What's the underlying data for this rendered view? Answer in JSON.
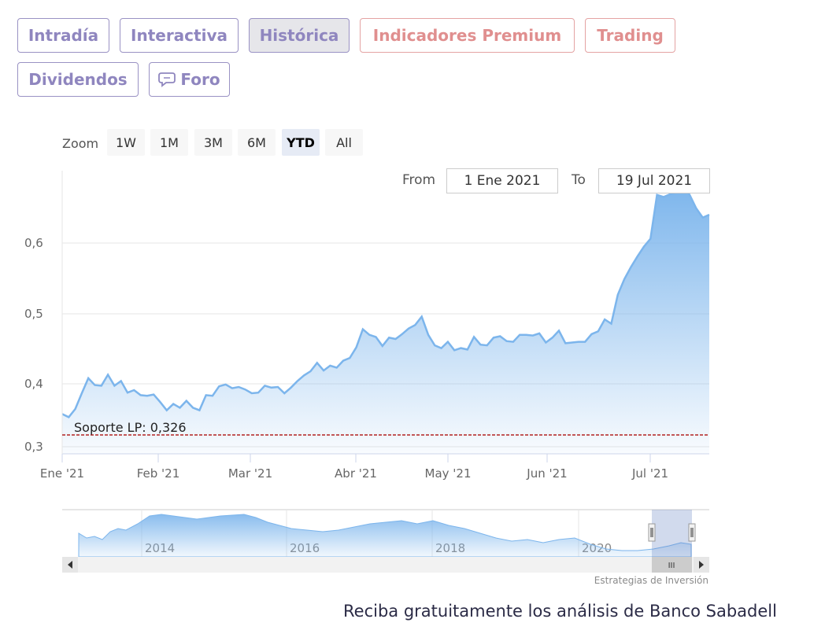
{
  "tabs": [
    {
      "label": "Intradía",
      "active": false,
      "premium": false
    },
    {
      "label": "Interactiva",
      "active": false,
      "premium": false
    },
    {
      "label": "Histórica",
      "active": true,
      "premium": false
    },
    {
      "label": "Indicadores Premium",
      "active": false,
      "premium": true
    },
    {
      "label": "Trading",
      "active": false,
      "premium": true
    },
    {
      "label": "Dividendos",
      "active": false,
      "premium": false
    },
    {
      "label": "Foro",
      "active": false,
      "premium": false,
      "icon": "chat-bubble-icon"
    }
  ],
  "zoom": {
    "label": "Zoom",
    "buttons": [
      "1W",
      "1M",
      "3M",
      "6M",
      "YTD",
      "All"
    ],
    "selected": "YTD"
  },
  "range": {
    "from_label": "From",
    "from_value": "1 Ene 2021",
    "to_label": "To",
    "to_value": "19 Jul 2021"
  },
  "chart_data": {
    "type": "area",
    "title": "",
    "xlabel": "",
    "ylabel": "",
    "y_ticks": [
      "0,3",
      "0,4",
      "0,5",
      "0,6"
    ],
    "ylim": [
      0.3,
      0.7
    ],
    "x_ticks": [
      {
        "label": "Ene '21",
        "date": "2021-01-01"
      },
      {
        "label": "Feb '21",
        "date": "2021-02-01"
      },
      {
        "label": "Mar '21",
        "date": "2021-03-01"
      },
      {
        "label": "Abr '21",
        "date": "2021-04-01"
      },
      {
        "label": "May '21",
        "date": "2021-05-01"
      },
      {
        "label": "Jun '21",
        "date": "2021-06-01"
      },
      {
        "label": "Jul '21",
        "date": "2021-07-01"
      }
    ],
    "x_range": [
      "2021-01-01",
      "2021-07-19"
    ],
    "series": [
      {
        "color": "#7cb5ec",
        "points": [
          [
            "2021-01-01",
            0.352
          ],
          [
            "2021-01-03",
            0.347
          ],
          [
            "2021-01-05",
            0.36
          ],
          [
            "2021-01-07",
            0.385
          ],
          [
            "2021-01-09",
            0.408
          ],
          [
            "2021-01-11",
            0.398
          ],
          [
            "2021-01-13",
            0.397
          ],
          [
            "2021-01-15",
            0.413
          ],
          [
            "2021-01-17",
            0.397
          ],
          [
            "2021-01-19",
            0.404
          ],
          [
            "2021-01-21",
            0.386
          ],
          [
            "2021-01-23",
            0.39
          ],
          [
            "2021-01-25",
            0.382
          ],
          [
            "2021-01-27",
            0.381
          ],
          [
            "2021-01-29",
            0.383
          ],
          [
            "2021-01-31",
            0.371
          ],
          [
            "2021-02-02",
            0.358
          ],
          [
            "2021-02-04",
            0.368
          ],
          [
            "2021-02-06",
            0.362
          ],
          [
            "2021-02-08",
            0.373
          ],
          [
            "2021-02-10",
            0.362
          ],
          [
            "2021-02-12",
            0.358
          ],
          [
            "2021-02-14",
            0.382
          ],
          [
            "2021-02-16",
            0.381
          ],
          [
            "2021-02-18",
            0.396
          ],
          [
            "2021-02-20",
            0.399
          ],
          [
            "2021-02-22",
            0.393
          ],
          [
            "2021-02-24",
            0.395
          ],
          [
            "2021-02-26",
            0.391
          ],
          [
            "2021-02-28",
            0.385
          ],
          [
            "2021-03-02",
            0.386
          ],
          [
            "2021-03-04",
            0.397
          ],
          [
            "2021-03-06",
            0.394
          ],
          [
            "2021-03-08",
            0.395
          ],
          [
            "2021-03-10",
            0.385
          ],
          [
            "2021-03-12",
            0.394
          ],
          [
            "2021-03-14",
            0.404
          ],
          [
            "2021-03-16",
            0.412
          ],
          [
            "2021-03-18",
            0.418
          ],
          [
            "2021-03-20",
            0.43
          ],
          [
            "2021-03-22",
            0.419
          ],
          [
            "2021-03-24",
            0.426
          ],
          [
            "2021-03-26",
            0.423
          ],
          [
            "2021-03-28",
            0.433
          ],
          [
            "2021-03-30",
            0.437
          ],
          [
            "2021-04-01",
            0.452
          ],
          [
            "2021-04-03",
            0.478
          ],
          [
            "2021-04-05",
            0.47
          ],
          [
            "2021-04-07",
            0.467
          ],
          [
            "2021-04-09",
            0.454
          ],
          [
            "2021-04-11",
            0.466
          ],
          [
            "2021-04-13",
            0.464
          ],
          [
            "2021-04-15",
            0.471
          ],
          [
            "2021-04-17",
            0.479
          ],
          [
            "2021-04-19",
            0.484
          ],
          [
            "2021-04-21",
            0.496
          ],
          [
            "2021-04-23",
            0.47
          ],
          [
            "2021-04-25",
            0.455
          ],
          [
            "2021-04-27",
            0.451
          ],
          [
            "2021-04-29",
            0.46
          ],
          [
            "2021-05-01",
            0.448
          ],
          [
            "2021-05-03",
            0.451
          ],
          [
            "2021-05-05",
            0.449
          ],
          [
            "2021-05-07",
            0.467
          ],
          [
            "2021-05-09",
            0.456
          ],
          [
            "2021-05-11",
            0.455
          ],
          [
            "2021-05-13",
            0.466
          ],
          [
            "2021-05-15",
            0.468
          ],
          [
            "2021-05-17",
            0.461
          ],
          [
            "2021-05-19",
            0.46
          ],
          [
            "2021-05-21",
            0.47
          ],
          [
            "2021-05-23",
            0.47
          ],
          [
            "2021-05-25",
            0.469
          ],
          [
            "2021-05-27",
            0.472
          ],
          [
            "2021-05-29",
            0.459
          ],
          [
            "2021-05-31",
            0.466
          ],
          [
            "2021-06-02",
            0.476
          ],
          [
            "2021-06-04",
            0.458
          ],
          [
            "2021-06-06",
            0.459
          ],
          [
            "2021-06-08",
            0.46
          ],
          [
            "2021-06-10",
            0.46
          ],
          [
            "2021-06-12",
            0.471
          ],
          [
            "2021-06-14",
            0.475
          ],
          [
            "2021-06-16",
            0.492
          ],
          [
            "2021-06-18",
            0.486
          ],
          [
            "2021-06-20",
            0.527
          ],
          [
            "2021-06-22",
            0.549
          ],
          [
            "2021-06-24",
            0.566
          ],
          [
            "2021-06-26",
            0.581
          ],
          [
            "2021-06-28",
            0.595
          ],
          [
            "2021-06-30",
            0.606
          ],
          [
            "2021-07-02",
            0.668
          ],
          [
            "2021-07-04",
            0.665
          ],
          [
            "2021-07-06",
            0.669
          ],
          [
            "2021-07-08",
            0.672
          ],
          [
            "2021-07-10",
            0.683
          ],
          [
            "2021-07-12",
            0.668
          ],
          [
            "2021-07-14",
            0.649
          ],
          [
            "2021-07-16",
            0.636
          ],
          [
            "2021-07-19",
            0.64
          ]
        ]
      }
    ],
    "support_line": {
      "label": "Soporte LP: 0,326",
      "value": 0.326,
      "color": "#b22222"
    },
    "navigator": {
      "years": [
        "2014",
        "2016",
        "2018",
        "2020"
      ]
    }
  },
  "scrollbar": {
    "handle_label": "III",
    "left_arrow": "◀",
    "right_arrow": "▶"
  },
  "credit": "Estrategias de Inversión",
  "cta": "Reciba gratuitamente los análisis de Banco Sabadell"
}
